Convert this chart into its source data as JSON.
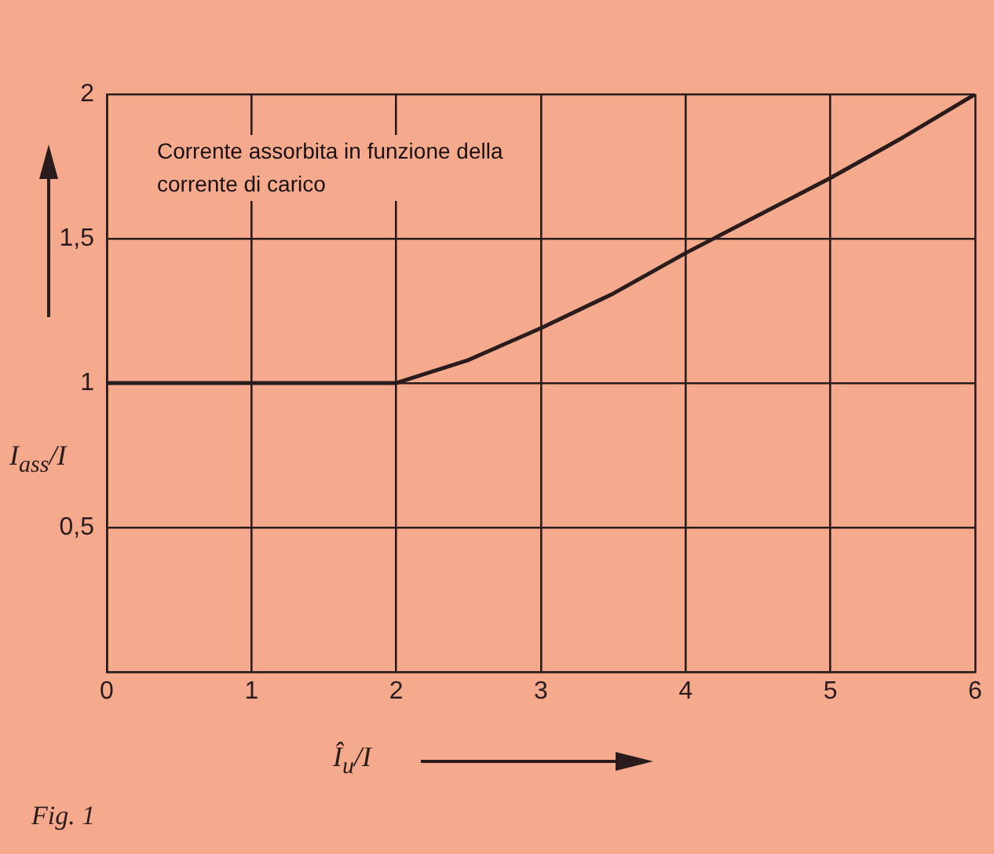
{
  "chart_data": {
    "type": "line",
    "xlabel": "Î$_{u}$/I",
    "ylabel": "I$_{ass}$/I",
    "annotations": [
      "Corrente assorbita in funzione della corrente di carico",
      "Fig. 1"
    ],
    "x": [
      0,
      1,
      2,
      2.5,
      3,
      3.5,
      4,
      4.5,
      5,
      5.5,
      6
    ],
    "series": [
      {
        "color": "#2a1c1c",
        "values": [
          1,
          1,
          1,
          1.08,
          1.19,
          1.31,
          1.45,
          1.58,
          1.71,
          1.85,
          2
        ]
      }
    ],
    "xlim": [
      0,
      6
    ],
    "ylim": [
      0,
      2
    ],
    "xticks": [
      0,
      1,
      2,
      3,
      4,
      5,
      6
    ],
    "yticks": [
      {
        "value": 0,
        "label": null
      },
      {
        "value": 0.5,
        "label": "0,5"
      },
      1,
      {
        "value": 1.5,
        "label": "1,5"
      },
      2
    ],
    "grid": true,
    "legend": false,
    "marker": "none",
    "line_style": "solid"
  }
}
